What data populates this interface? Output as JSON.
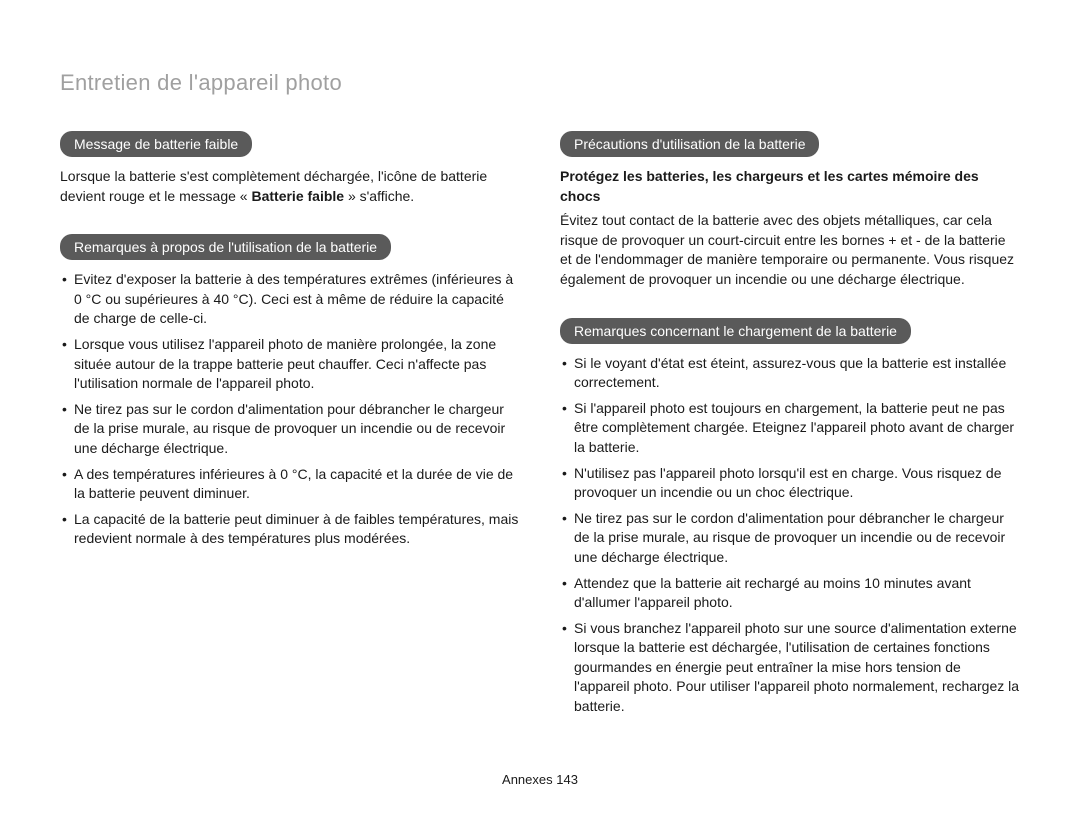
{
  "page": {
    "title": "Entretien de l'appareil photo",
    "footer_label": "Annexes",
    "footer_page": "143"
  },
  "left_column": {
    "section1": {
      "header": "Message de batterie faible",
      "paragraph_part1": "Lorsque la batterie s'est complètement déchargée, l'icône de batterie devient rouge et le message « ",
      "paragraph_bold": "Batterie faible",
      "paragraph_part2": " » s'affiche."
    },
    "section2": {
      "header": "Remarques à propos de l'utilisation de la batterie",
      "items": [
        "Evitez d'exposer la batterie à des températures extrêmes (inférieures à 0 °C ou supérieures à 40 °C). Ceci est à même de réduire la capacité de charge de celle-ci.",
        "Lorsque vous utilisez l'appareil photo de manière prolongée, la zone située autour de la trappe batterie peut chauffer. Ceci n'affecte pas l'utilisation normale de l'appareil photo.",
        "Ne tirez pas sur le cordon d'alimentation pour débrancher le chargeur de la prise murale, au risque de provoquer un incendie ou de recevoir une décharge électrique.",
        "A des températures inférieures à 0 °C, la capacité et la durée de vie de la batterie peuvent diminuer.",
        "La capacité de la batterie peut diminuer à de faibles températures, mais redevient normale à des températures plus modérées."
      ]
    }
  },
  "right_column": {
    "section1": {
      "header": "Précautions d'utilisation de la batterie",
      "emphasis": "Protégez les batteries, les chargeurs et les cartes mémoire des chocs",
      "paragraph": "Évitez tout contact de la batterie avec des objets métalliques, car cela risque de provoquer un court-circuit entre les bornes + et - de la batterie et de l'endommager de manière temporaire ou permanente. Vous risquez également de provoquer un incendie ou une décharge électrique."
    },
    "section2": {
      "header": "Remarques concernant le chargement de la batterie",
      "items": [
        "Si le voyant d'état est éteint, assurez-vous que la batterie est installée correctement.",
        "Si l'appareil photo est toujours en chargement, la batterie peut ne pas être complètement chargée. Eteignez l'appareil photo avant de charger la batterie.",
        "N'utilisez pas l'appareil photo lorsqu'il est en charge. Vous risquez de provoquer un incendie ou un choc électrique.",
        "Ne tirez pas sur le cordon d'alimentation pour débrancher le chargeur de la prise murale, au risque de provoquer un incendie ou de recevoir une décharge électrique.",
        "Attendez que la batterie ait rechargé au moins 10 minutes avant d'allumer l'appareil photo.",
        "Si vous branchez l'appareil photo sur une source d'alimentation externe lorsque la batterie est déchargée, l'utilisation de certaines fonctions gourmandes en énergie peut entraîner la mise hors tension de l'appareil photo. Pour utiliser l'appareil photo normalement, rechargez la batterie."
      ]
    }
  }
}
